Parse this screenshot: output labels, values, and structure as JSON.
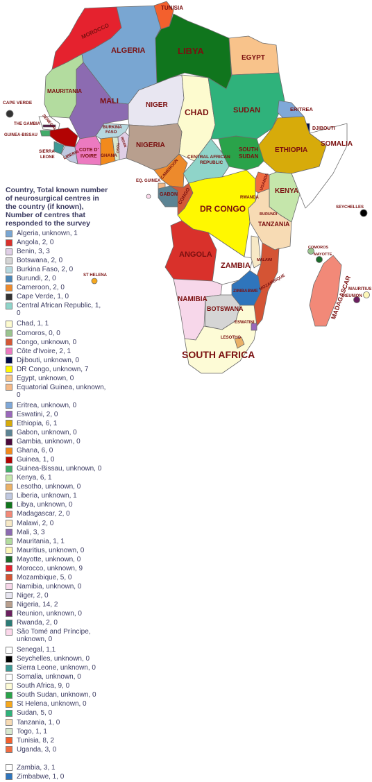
{
  "map": {
    "title_lines": [
      "Country, Total known number",
      "of neurosurgical centres in",
      "the country (if known),",
      "Number of centres that",
      "responded to the survey"
    ],
    "labels": {
      "tunisia": "TUNISIA",
      "morocco": "MOROCCO",
      "algeria": "ALGERIA",
      "libya": "LIBYA",
      "egypt": "EGYPT",
      "mauritania": "MAURITANIA",
      "mali": "MALI",
      "niger": "NIGER",
      "chad": "CHAD",
      "sudan": "SUDAN",
      "eritrea": "ERITREA",
      "djibouti": "DJIBOUTI",
      "somalia": "SOMALIA",
      "ethiopia": "ETHIOPIA",
      "south_sudan_1": "SOUTH",
      "south_sudan_2": "SUDAN",
      "cape_verde": "CAPE VERDE",
      "senegal": "SENEGAL",
      "gambia": "THE GAMBIA",
      "guinea_bissau": "GUINEA-BISSAU",
      "sierra_leone_1": "SIERRA",
      "sierra_leone_2": "LEONE",
      "liberia": "LIBERIA",
      "cote_1": "COTE D'",
      "cote_2": "IVOIRE",
      "burkina_1": "BURKINA",
      "burkina_2": "FASO",
      "ghana": "GHANA",
      "togo": "TOGO",
      "benin": "BENIN",
      "nigeria": "NIGERIA",
      "cameroon": "CAMEROON",
      "car_1": "CENTRAL AFRICAN",
      "car_2": "REPUBLIC",
      "eq_guinea": "EQ. GUINEA",
      "gabon": "GABON",
      "congo": "CONGO",
      "dr_congo": "DR CONGO",
      "uganda": "UGANDA",
      "kenya": "KENYA",
      "rwanda": "RWANDA",
      "burundi": "BURUNDI",
      "tanzania": "TANZANIA",
      "seychelles": "SEYCHELLES",
      "angola": "ANGOLA",
      "zambia": "ZAMBIA",
      "malawi": "MALAWI",
      "mozambique": "MOZAMBIQUE",
      "comoros": "COMOROS",
      "mayotte": "MAYOTTE",
      "st_helena": "ST HELENA",
      "madagascar": "MADAGASCAR",
      "mauritius": "MAURITIUS",
      "reunion": "REUNION",
      "namibia": "NAMIBIA",
      "zimbabwe": "ZIMBABWE",
      "botswana": "BOTSWANA",
      "eswatini": "ESWATINI",
      "lesotho": "LESOTHO",
      "south_africa": "SOUTH AFRICA"
    },
    "colors": {
      "algeria": "#79a6d2",
      "angola": "#d9312b",
      "benin": "#e0cfe6",
      "botswana": "#d5d5d5",
      "burkina": "#b6d8df",
      "burundi": "#4b87b7",
      "cameroon": "#ed8a2c",
      "cape_verde": "#333333",
      "car": "#8fd4c9",
      "chad": "#fdfbcf",
      "comoros": "#9ac48f",
      "congo": "#d35836",
      "cote": "#ec7ac0",
      "djibouti": "#000b46",
      "dr_congo": "#fff800",
      "egypt": "#f8c38b",
      "eq_guinea": "#f4b988",
      "eritrea": "#7fa8d8",
      "eswatini": "#9a68bb",
      "ethiopia": "#d7ab0a",
      "gabon": "#5c8494",
      "gambia": "#4a0a3c",
      "ghana": "#f28a1c",
      "guinea": "#b20303",
      "guinea_bissau": "#42ac6a",
      "kenya": "#c5e6ab",
      "lesotho": "#eab168",
      "liberia": "#bfc8e0",
      "libya": "#10751d",
      "madagascar": "#f28978",
      "malawi": "#f7e9c6",
      "mali": "#8c6bb1",
      "mauritania": "#b3dc9f",
      "mauritius": "#fdf7b8",
      "mayotte": "#1b6a2a",
      "morocco": "#e5222e",
      "mozambique": "#d45434",
      "namibia": "#f7d7ea",
      "niger": "#e8e6f1",
      "nigeria": "#b89f8e",
      "reunion": "#6b1f5f",
      "rwanda": "#2c7b76",
      "sao_tome": "#fbd7ea",
      "senegal": "#ffffff",
      "seychelles": "#000000",
      "sierra_leone": "#3e9a96",
      "somalia": "#ffffff",
      "south_africa": "#fdfbd6",
      "south_sudan": "#2aa34a",
      "st_helena": "#f6a81d",
      "sudan": "#2fb27b",
      "tanzania": "#f7dbb4",
      "togo": "#d8e8cf",
      "tunisia": "#f3602d",
      "uganda": "#f06c42",
      "zambia": "#ffffff",
      "zimbabwe": "#2f75bc"
    }
  },
  "legend": [
    {
      "label": "Algeria, unknown, 1",
      "color": "#79a6d2"
    },
    {
      "label": "Angola, 2, 0",
      "color": "#d9312b"
    },
    {
      "label": "Benin, 3, 3",
      "color": "#e0cfe6"
    },
    {
      "label": "Botswana, 2, 0",
      "color": "#d5d5d5"
    },
    {
      "label": "Burkina Faso, 2, 0",
      "color": "#b6d8df"
    },
    {
      "label": "Burundi, 2, 0",
      "color": "#4b87b7"
    },
    {
      "label": "Cameroon, 2, 0",
      "color": "#ed8a2c"
    },
    {
      "label": "Cape Verde, 1, 0",
      "color": "#333333"
    },
    {
      "label": "Central African Republic, 1,",
      "label2": "0",
      "color": "#8fd4c9"
    },
    {
      "label": "Chad, 1, 1",
      "color": "#fdfbcf"
    },
    {
      "label": "Comoros, 0, 0",
      "color": "#9ac48f"
    },
    {
      "label": "Congo, unknown, 0",
      "color": "#d35836"
    },
    {
      "label": "Côte d'Ivoire, 2, 1",
      "color": "#ec7ac0"
    },
    {
      "label": "Djibouti, unknown, 0",
      "color": "#000b46"
    },
    {
      "label": "DR Congo, unknown, 7",
      "color": "#fff800"
    },
    {
      "label": "Egypt, unknown, 0",
      "color": "#f8c38b"
    },
    {
      "label": "Equatorial Guinea, unknown,",
      "label2": "0",
      "color": "#f4b988"
    },
    {
      "label": "Eritrea, unknown, 0",
      "color": "#7fa8d8"
    },
    {
      "label": "Eswatini, 2, 0",
      "color": "#9a68bb"
    },
    {
      "label": "Ethiopia, 6, 1",
      "color": "#d7ab0a"
    },
    {
      "label": "Gabon, unknown, 0",
      "color": "#5c8494"
    },
    {
      "label": "Gambia, unknown, 0",
      "color": "#4a0a3c"
    },
    {
      "label": "Ghana, 6, 0",
      "color": "#f28a1c"
    },
    {
      "label": "Guinea, 1, 0",
      "color": "#b20303"
    },
    {
      "label": "Guinea-Bissau, unknown, 0",
      "color": "#42ac6a"
    },
    {
      "label": "Kenya, 6, 1",
      "color": "#c5e6ab"
    },
    {
      "label": "Lesotho, unknown, 0",
      "color": "#eab168"
    },
    {
      "label": "Liberia, unknown, 1",
      "color": "#bfc8e0"
    },
    {
      "label": "Libya, unknown, 0",
      "color": "#10751d"
    },
    {
      "label": "Madagascar, 2, 0",
      "color": "#f28978"
    },
    {
      "label": "Malawi, 2, 0",
      "color": "#f7e9c6"
    },
    {
      "label": "Mali, 3, 3",
      "color": "#8c6bb1"
    },
    {
      "label": "Mauritania, 1, 1",
      "color": "#b3dc9f"
    },
    {
      "label": "Mauritius, unknown, 0",
      "color": "#fdf7b8"
    },
    {
      "label": "Mayotte, unknown, 0",
      "color": "#1b6a2a"
    },
    {
      "label": "Morocco, unknown, 9",
      "color": "#e5222e"
    },
    {
      "label": "Mozambique, 5, 0",
      "color": "#d45434"
    },
    {
      "label": "Namibia, unknown, 0",
      "color": "#f7d7ea"
    },
    {
      "label": "Niger, 2, 0",
      "color": "#e8e6f1"
    },
    {
      "label": "Nigeria, 14, 2",
      "color": "#b89f8e"
    },
    {
      "label": "Reunion, unknown, 0",
      "color": "#6b1f5f"
    },
    {
      "label": "Rwanda, 2, 0",
      "color": "#2c7b76"
    },
    {
      "label": "São Tomé and Príncipe,",
      "label2": "unknown, 0",
      "color": "#fbd7ea"
    },
    {
      "label": "Senegal, 1,1",
      "color": "#ffffff"
    },
    {
      "label": "Seychelles, unknown, 0",
      "color": "#000000"
    },
    {
      "label": "Sierra Leone, unknown, 0",
      "color": "#3e9a96"
    },
    {
      "label": "Somalia, unknown, 0",
      "color": "#ffffff"
    },
    {
      "label": "South Africa, 9, 0",
      "color": "#fdfbd6"
    },
    {
      "label": "South Sudan, unknown, 0",
      "color": "#2aa34a"
    },
    {
      "label": "St Helena, unknown, 0",
      "color": "#f6a81d"
    },
    {
      "label": "Sudan, 5, 0",
      "color": "#2fb27b"
    },
    {
      "label": "Tanzania, 1, 0",
      "color": "#f7dbb4"
    },
    {
      "label": "Togo, 1, 1",
      "color": "#d8e8cf"
    },
    {
      "label": "Tunisia, 8, 2",
      "color": "#f3602d"
    },
    {
      "label": "Uganda, 3, 0",
      "color": "#f06c42"
    },
    {
      "label": "Zambia, 3, 1",
      "color": "#ffffff",
      "gap": true
    },
    {
      "label": "Zimbabwe, 1, 0",
      "color": "#2f75bc"
    }
  ]
}
